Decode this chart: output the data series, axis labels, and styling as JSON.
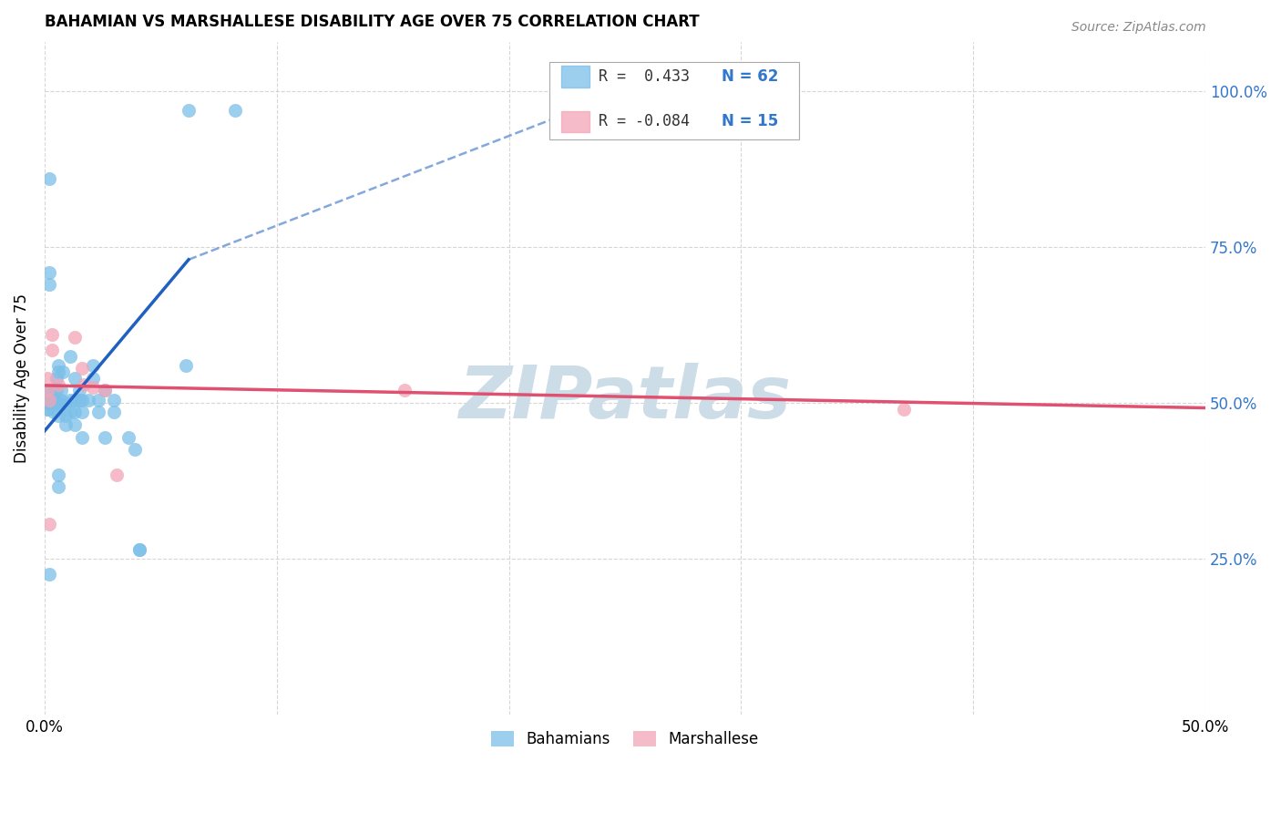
{
  "title": "BAHAMIAN VS MARSHALLESE DISABILITY AGE OVER 75 CORRELATION CHART",
  "source": "Source: ZipAtlas.com",
  "ylabel": "Disability Age Over 75",
  "legend_r_bahamian": "R =  0.433",
  "legend_n_bahamian": "N = 62",
  "legend_r_marshallese": "R = -0.084",
  "legend_n_marshallese": "N = 15",
  "bahamian_color": "#7bbfe8",
  "marshallese_color": "#f4a5b8",
  "trendline_bahamian_color": "#2060c0",
  "trendline_marshallese_color": "#e05070",
  "watermark_text": "ZIPatlas",
  "watermark_color": "#ccdde8",
  "xlim": [
    0.0,
    0.5
  ],
  "ylim": [
    0.0,
    1.08
  ],
  "ytick_vals": [
    0.25,
    0.5,
    0.75,
    1.0
  ],
  "ytick_labs": [
    "25.0%",
    "50.0%",
    "75.0%",
    "100.0%"
  ],
  "xtick_vals": [
    0.0,
    0.1,
    0.2,
    0.3,
    0.4,
    0.5
  ],
  "xtick_labs": [
    "0.0%",
    "",
    "",
    "",
    "",
    "50.0%"
  ],
  "bahamian_scatter": [
    [
      0.001,
      0.5
    ],
    [
      0.001,
      0.5
    ],
    [
      0.001,
      0.5
    ],
    [
      0.001,
      0.49
    ],
    [
      0.001,
      0.49
    ],
    [
      0.001,
      0.5
    ],
    [
      0.001,
      0.5
    ],
    [
      0.001,
      0.52
    ],
    [
      0.001,
      0.52
    ],
    [
      0.001,
      0.5
    ],
    [
      0.003,
      0.5
    ],
    [
      0.004,
      0.52
    ],
    [
      0.004,
      0.5
    ],
    [
      0.004,
      0.485
    ],
    [
      0.005,
      0.505
    ],
    [
      0.005,
      0.52
    ],
    [
      0.005,
      0.54
    ],
    [
      0.005,
      0.5
    ],
    [
      0.006,
      0.56
    ],
    [
      0.006,
      0.55
    ],
    [
      0.006,
      0.5
    ],
    [
      0.006,
      0.48
    ],
    [
      0.007,
      0.505
    ],
    [
      0.007,
      0.52
    ],
    [
      0.008,
      0.55
    ],
    [
      0.009,
      0.5
    ],
    [
      0.009,
      0.48
    ],
    [
      0.009,
      0.465
    ],
    [
      0.011,
      0.575
    ],
    [
      0.011,
      0.505
    ],
    [
      0.011,
      0.485
    ],
    [
      0.013,
      0.54
    ],
    [
      0.013,
      0.505
    ],
    [
      0.013,
      0.485
    ],
    [
      0.013,
      0.465
    ],
    [
      0.015,
      0.52
    ],
    [
      0.015,
      0.505
    ],
    [
      0.016,
      0.505
    ],
    [
      0.016,
      0.485
    ],
    [
      0.019,
      0.505
    ],
    [
      0.021,
      0.56
    ],
    [
      0.021,
      0.54
    ],
    [
      0.023,
      0.505
    ],
    [
      0.023,
      0.485
    ],
    [
      0.026,
      0.52
    ],
    [
      0.03,
      0.505
    ],
    [
      0.03,
      0.485
    ],
    [
      0.036,
      0.445
    ],
    [
      0.039,
      0.425
    ],
    [
      0.041,
      0.265
    ],
    [
      0.041,
      0.265
    ],
    [
      0.006,
      0.385
    ],
    [
      0.006,
      0.365
    ],
    [
      0.002,
      0.225
    ],
    [
      0.002,
      0.86
    ],
    [
      0.062,
      0.97
    ],
    [
      0.082,
      0.97
    ],
    [
      0.002,
      0.71
    ],
    [
      0.002,
      0.69
    ],
    [
      0.061,
      0.56
    ],
    [
      0.016,
      0.445
    ],
    [
      0.026,
      0.445
    ]
  ],
  "marshallese_scatter": [
    [
      0.001,
      0.54
    ],
    [
      0.001,
      0.52
    ],
    [
      0.002,
      0.505
    ],
    [
      0.003,
      0.61
    ],
    [
      0.003,
      0.585
    ],
    [
      0.006,
      0.53
    ],
    [
      0.013,
      0.605
    ],
    [
      0.016,
      0.555
    ],
    [
      0.017,
      0.53
    ],
    [
      0.021,
      0.525
    ],
    [
      0.026,
      0.52
    ],
    [
      0.37,
      0.49
    ],
    [
      0.002,
      0.305
    ],
    [
      0.031,
      0.385
    ],
    [
      0.155,
      0.52
    ]
  ],
  "trendline_bahamian_solid": [
    [
      0.0,
      0.455
    ],
    [
      0.062,
      0.73
    ]
  ],
  "trendline_bahamian_dashed": [
    [
      0.062,
      0.73
    ],
    [
      0.26,
      1.015
    ]
  ],
  "trendline_marshallese": [
    [
      0.0,
      0.528
    ],
    [
      0.5,
      0.492
    ]
  ]
}
